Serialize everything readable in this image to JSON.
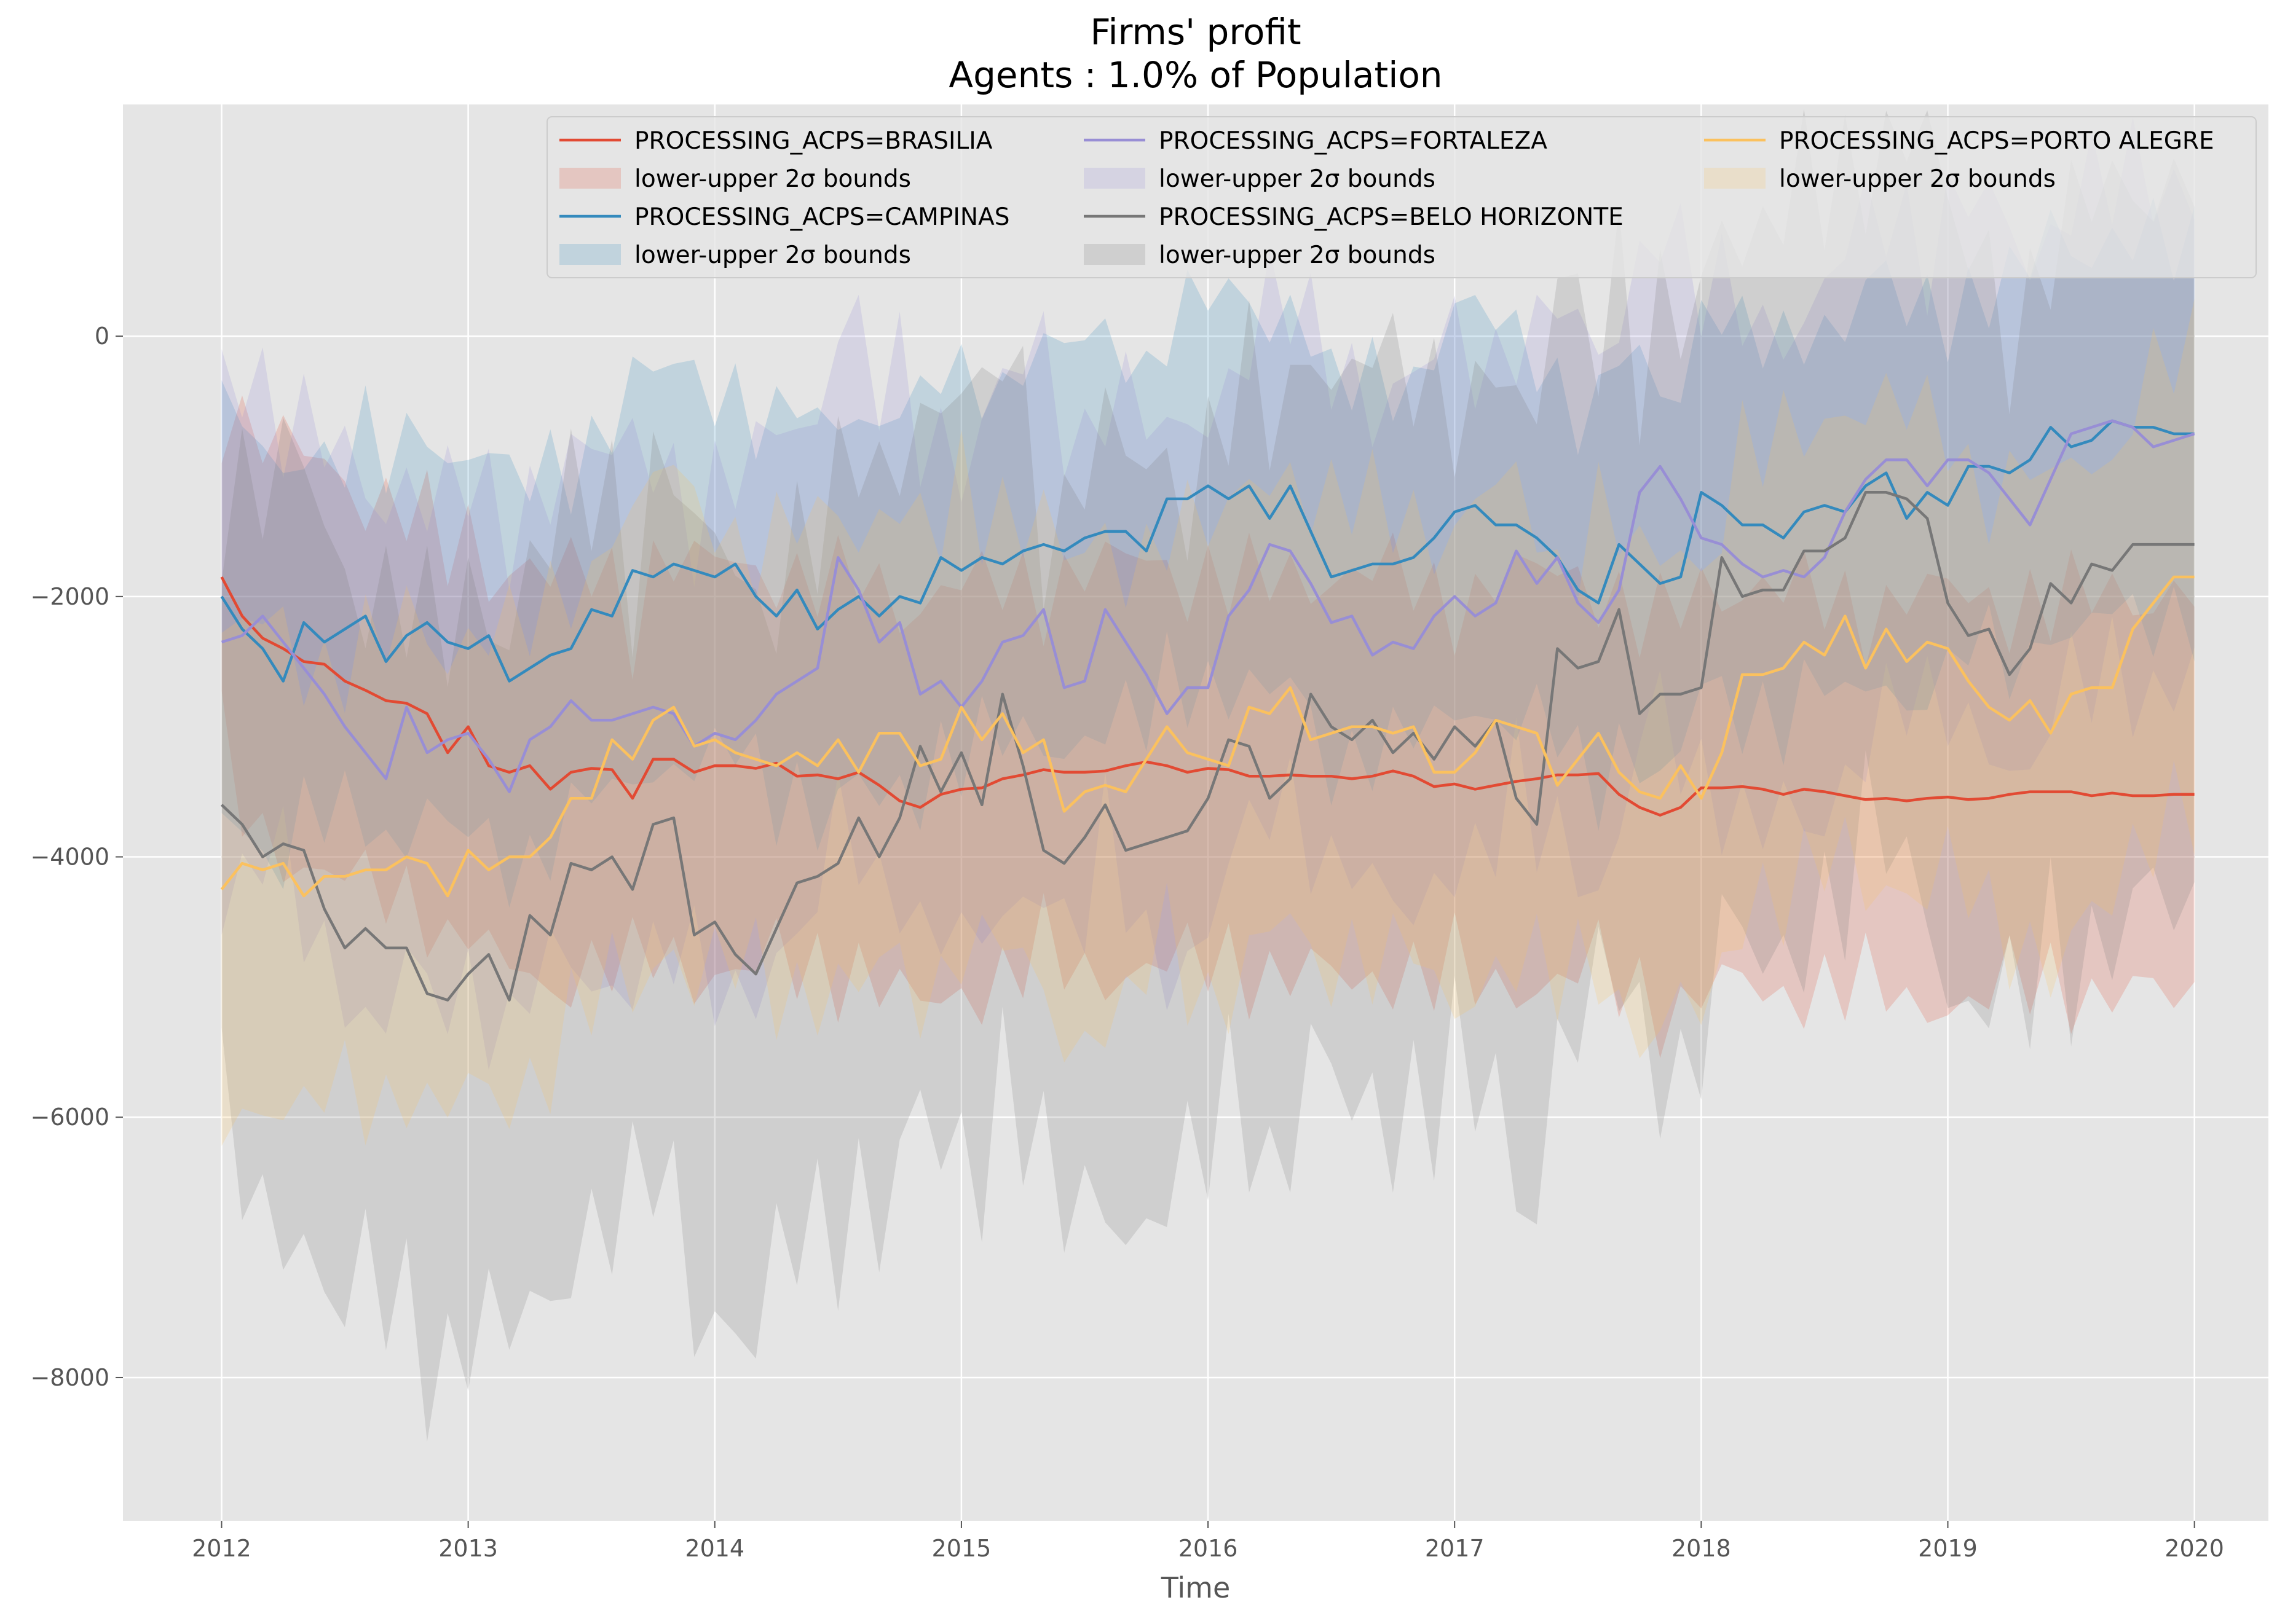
{
  "chart_data": {
    "type": "line",
    "title": "Firms' profit",
    "subtitle": "Agents : 1.0% of Population",
    "xlabel": "Time",
    "ylabel": "",
    "x_start": "2012-01",
    "x_ticks": [
      "2012",
      "2013",
      "2014",
      "2015",
      "2016",
      "2017",
      "2018",
      "2019",
      "2020"
    ],
    "xlim": [
      2011.6,
      2020.3
    ],
    "y_ticks": [
      "−8000",
      "−6000",
      "−4000",
      "−2000",
      "0"
    ],
    "y_tick_values": [
      -8000,
      -6000,
      -4000,
      -2000,
      0
    ],
    "ylim": [
      -9100,
      1780
    ],
    "grid": true,
    "legend": {
      "placement": "top-right",
      "band_label": "lower-upper 2σ bounds"
    },
    "series": [
      {
        "name": "PROCESSING_ACPS=BRASILIA",
        "color": "#E24A33",
        "band_width": 1250,
        "values": [
          -1850,
          -2150,
          -2320,
          -2400,
          -2500,
          -2520,
          -2650,
          -2720,
          -2800,
          -2820,
          -2900,
          -3200,
          -3000,
          -3300,
          -3350,
          -3300,
          -3480,
          -3350,
          -3320,
          -3330,
          -3550,
          -3250,
          -3250,
          -3350,
          -3300,
          -3300,
          -3320,
          -3280,
          -3380,
          -3370,
          -3400,
          -3350,
          -3450,
          -3570,
          -3620,
          -3520,
          -3480,
          -3470,
          -3400,
          -3370,
          -3330,
          -3350,
          -3350,
          -3340,
          -3300,
          -3270,
          -3300,
          -3350,
          -3320,
          -3330,
          -3380,
          -3380,
          -3370,
          -3380,
          -3380,
          -3400,
          -3380,
          -3340,
          -3380,
          -3460,
          -3440,
          -3480,
          -3450,
          -3420,
          -3400,
          -3370,
          -3370,
          -3360,
          -3520,
          -3620,
          -3680,
          -3620,
          -3470,
          -3470,
          -3460,
          -3480,
          -3520,
          -3480,
          -3500,
          -3530,
          -3560,
          -3550,
          -3570,
          -3550,
          -3540,
          -3560,
          -3550,
          -3520,
          -3500,
          -3500,
          -3500,
          -3530,
          -3510,
          -3530,
          -3530,
          -3520,
          -3520
        ]
      },
      {
        "name": "PROCESSING_ACPS=CAMPINAS",
        "color": "#348ABD",
        "band_width": 1200,
        "values": [
          -2000,
          -2250,
          -2400,
          -2650,
          -2200,
          -2350,
          -2250,
          -2150,
          -2500,
          -2300,
          -2200,
          -2350,
          -2400,
          -2300,
          -2650,
          -2550,
          -2450,
          -2400,
          -2100,
          -2150,
          -1800,
          -1850,
          -1750,
          -1800,
          -1850,
          -1750,
          -2000,
          -2150,
          -1950,
          -2250,
          -2100,
          -2000,
          -2150,
          -2000,
          -2050,
          -1700,
          -1800,
          -1700,
          -1750,
          -1650,
          -1600,
          -1650,
          -1550,
          -1500,
          -1500,
          -1650,
          -1250,
          -1250,
          -1150,
          -1250,
          -1150,
          -1400,
          -1150,
          -1500,
          -1850,
          -1800,
          -1750,
          -1750,
          -1700,
          -1550,
          -1350,
          -1300,
          -1450,
          -1450,
          -1550,
          -1700,
          -1950,
          -2050,
          -1600,
          -1750,
          -1900,
          -1850,
          -1200,
          -1300,
          -1450,
          -1450,
          -1550,
          -1350,
          -1300,
          -1350,
          -1150,
          -1050,
          -1400,
          -1200,
          -1300,
          -1000,
          -1000,
          -1050,
          -950,
          -700,
          -850,
          -800,
          -650,
          -700,
          -700,
          -750,
          -750
        ]
      },
      {
        "name": "PROCESSING_ACPS=FORTALEZA",
        "color": "#988ED5",
        "band_width": 1600,
        "values": [
          -2350,
          -2300,
          -2150,
          -2350,
          -2550,
          -2750,
          -3000,
          -3200,
          -3400,
          -2850,
          -3200,
          -3100,
          -3050,
          -3250,
          -3500,
          -3100,
          -3000,
          -2800,
          -2950,
          -2950,
          -2900,
          -2850,
          -2900,
          -3150,
          -3050,
          -3100,
          -2950,
          -2750,
          -2650,
          -2550,
          -1700,
          -1950,
          -2350,
          -2200,
          -2750,
          -2650,
          -2850,
          -2650,
          -2350,
          -2300,
          -2100,
          -2700,
          -2650,
          -2100,
          -2350,
          -2600,
          -2900,
          -2700,
          -2700,
          -2150,
          -1950,
          -1600,
          -1650,
          -1900,
          -2200,
          -2150,
          -2450,
          -2350,
          -2400,
          -2150,
          -2000,
          -2150,
          -2050,
          -1650,
          -1900,
          -1700,
          -2050,
          -2200,
          -1950,
          -1200,
          -1000,
          -1250,
          -1550,
          -1600,
          -1750,
          -1850,
          -1800,
          -1850,
          -1700,
          -1350,
          -1100,
          -950,
          -950,
          -1150,
          -950,
          -950,
          -1050,
          -1250,
          -1450,
          -1100,
          -750,
          -700,
          -650,
          -700,
          -850,
          -800,
          -750
        ]
      },
      {
        "name": "PROCESSING_ACPS=BELO HORIZONTE",
        "color": "#777777",
        "band_width": 2300,
        "values": [
          -3600,
          -3750,
          -4000,
          -3900,
          -3950,
          -4400,
          -4700,
          -4550,
          -4700,
          -4700,
          -5050,
          -5100,
          -4900,
          -4750,
          -5100,
          -4450,
          -4600,
          -4050,
          -4100,
          -4000,
          -4250,
          -3750,
          -3700,
          -4600,
          -4500,
          -4750,
          -4900,
          -4550,
          -4200,
          -4150,
          -4050,
          -3700,
          -4000,
          -3700,
          -3150,
          -3500,
          -3200,
          -3600,
          -2750,
          -3300,
          -3950,
          -4050,
          -3850,
          -3600,
          -3950,
          -3900,
          -3850,
          -3800,
          -3550,
          -3100,
          -3150,
          -3550,
          -3400,
          -2750,
          -3000,
          -3100,
          -2950,
          -3200,
          -3050,
          -3250,
          -3000,
          -3150,
          -2950,
          -3550,
          -3750,
          -2400,
          -2550,
          -2500,
          -2100,
          -2900,
          -2750,
          -2750,
          -2700,
          -1700,
          -2000,
          -1950,
          -1950,
          -1650,
          -1650,
          -1550,
          -1200,
          -1200,
          -1250,
          -1400,
          -2050,
          -2300,
          -2250,
          -2600,
          -2400,
          -1900,
          -2050,
          -1750,
          -1800,
          -1600,
          -1600,
          -1600,
          -1600
        ]
      },
      {
        "name": "PROCESSING_ACPS=PORTO ALEGRE",
        "color": "#FBC15E",
        "band_width": 1450,
        "values": [
          -4250,
          -4050,
          -4100,
          -4050,
          -4300,
          -4150,
          -4150,
          -4100,
          -4100,
          -4000,
          -4050,
          -4300,
          -3950,
          -4100,
          -4000,
          -4000,
          -3850,
          -3550,
          -3550,
          -3100,
          -3250,
          -2950,
          -2850,
          -3150,
          -3100,
          -3200,
          -3250,
          -3300,
          -3200,
          -3300,
          -3100,
          -3350,
          -3050,
          -3050,
          -3300,
          -3250,
          -2850,
          -3100,
          -2900,
          -3200,
          -3100,
          -3650,
          -3500,
          -3450,
          -3500,
          -3250,
          -3000,
          -3200,
          -3250,
          -3300,
          -2850,
          -2900,
          -2700,
          -3100,
          -3050,
          -3000,
          -3000,
          -3050,
          -3000,
          -3350,
          -3350,
          -3200,
          -2950,
          -3000,
          -3050,
          -3450,
          -3250,
          -3050,
          -3350,
          -3500,
          -3550,
          -3300,
          -3550,
          -3200,
          -2600,
          -2600,
          -2550,
          -2350,
          -2450,
          -2150,
          -2550,
          -2250,
          -2500,
          -2350,
          -2400,
          -2650,
          -2850,
          -2950,
          -2800,
          -3050,
          -2750,
          -2700,
          -2700,
          -2250,
          -2050,
          -1850,
          -1850
        ]
      }
    ]
  }
}
